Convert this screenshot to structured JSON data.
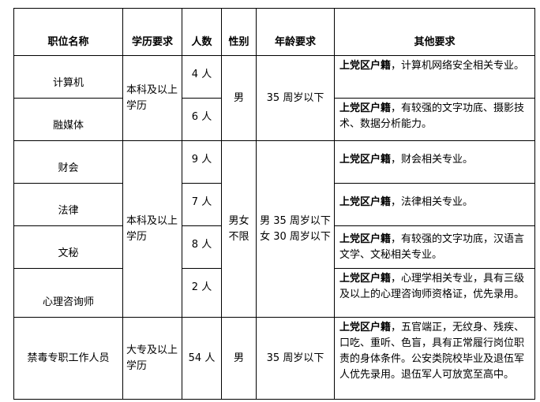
{
  "headers": [
    "职位名称",
    "学历要求",
    "人数",
    "性别",
    "年龄要求",
    "其他要求"
  ],
  "bold_prefix": "上党区户籍",
  "rows": [
    {
      "name": "计算机",
      "count": "4 人",
      "other": "，计算机网络安全相关专业。"
    },
    {
      "name": "融媒体",
      "count": "6 人",
      "other": "，有较强的文字功底、摄影技术、数据分析能力。"
    },
    {
      "name": "财会",
      "count": "9 人",
      "other": "，财会相关专业。"
    },
    {
      "name": "法律",
      "count": "7 人",
      "other": "，法律相关专业。"
    },
    {
      "name": "文秘",
      "count": "8 人",
      "other": "，有较强的文字功底，汉语言文学、文秘相关专业。"
    },
    {
      "name": "心理咨询师",
      "count": "2 人",
      "other": "，心理学相关专业，具有三级及以上的心理咨询师资格证，优先录用。"
    },
    {
      "name": "禁毒专职工作人员",
      "count": "54 人",
      "other": "，五官端正，无纹身、残疾、口吃、重听、色盲，具有正常履行岗位职责的身体条件。公安类院校毕业及退伍军人优先录用。退伍军人可放宽至高中。"
    }
  ],
  "groups": {
    "g1": {
      "edu": "本科及以上学历",
      "gender": "男",
      "age": "35 周岁以下"
    },
    "g2": {
      "edu": "本科及以上学历",
      "gender": "男女不限",
      "age_male": "男 35 周岁以下",
      "age_female": "女 30 周岁以下"
    },
    "g3": {
      "edu": "大专及以上学历",
      "gender": "男",
      "age": "35 周岁以下"
    }
  }
}
